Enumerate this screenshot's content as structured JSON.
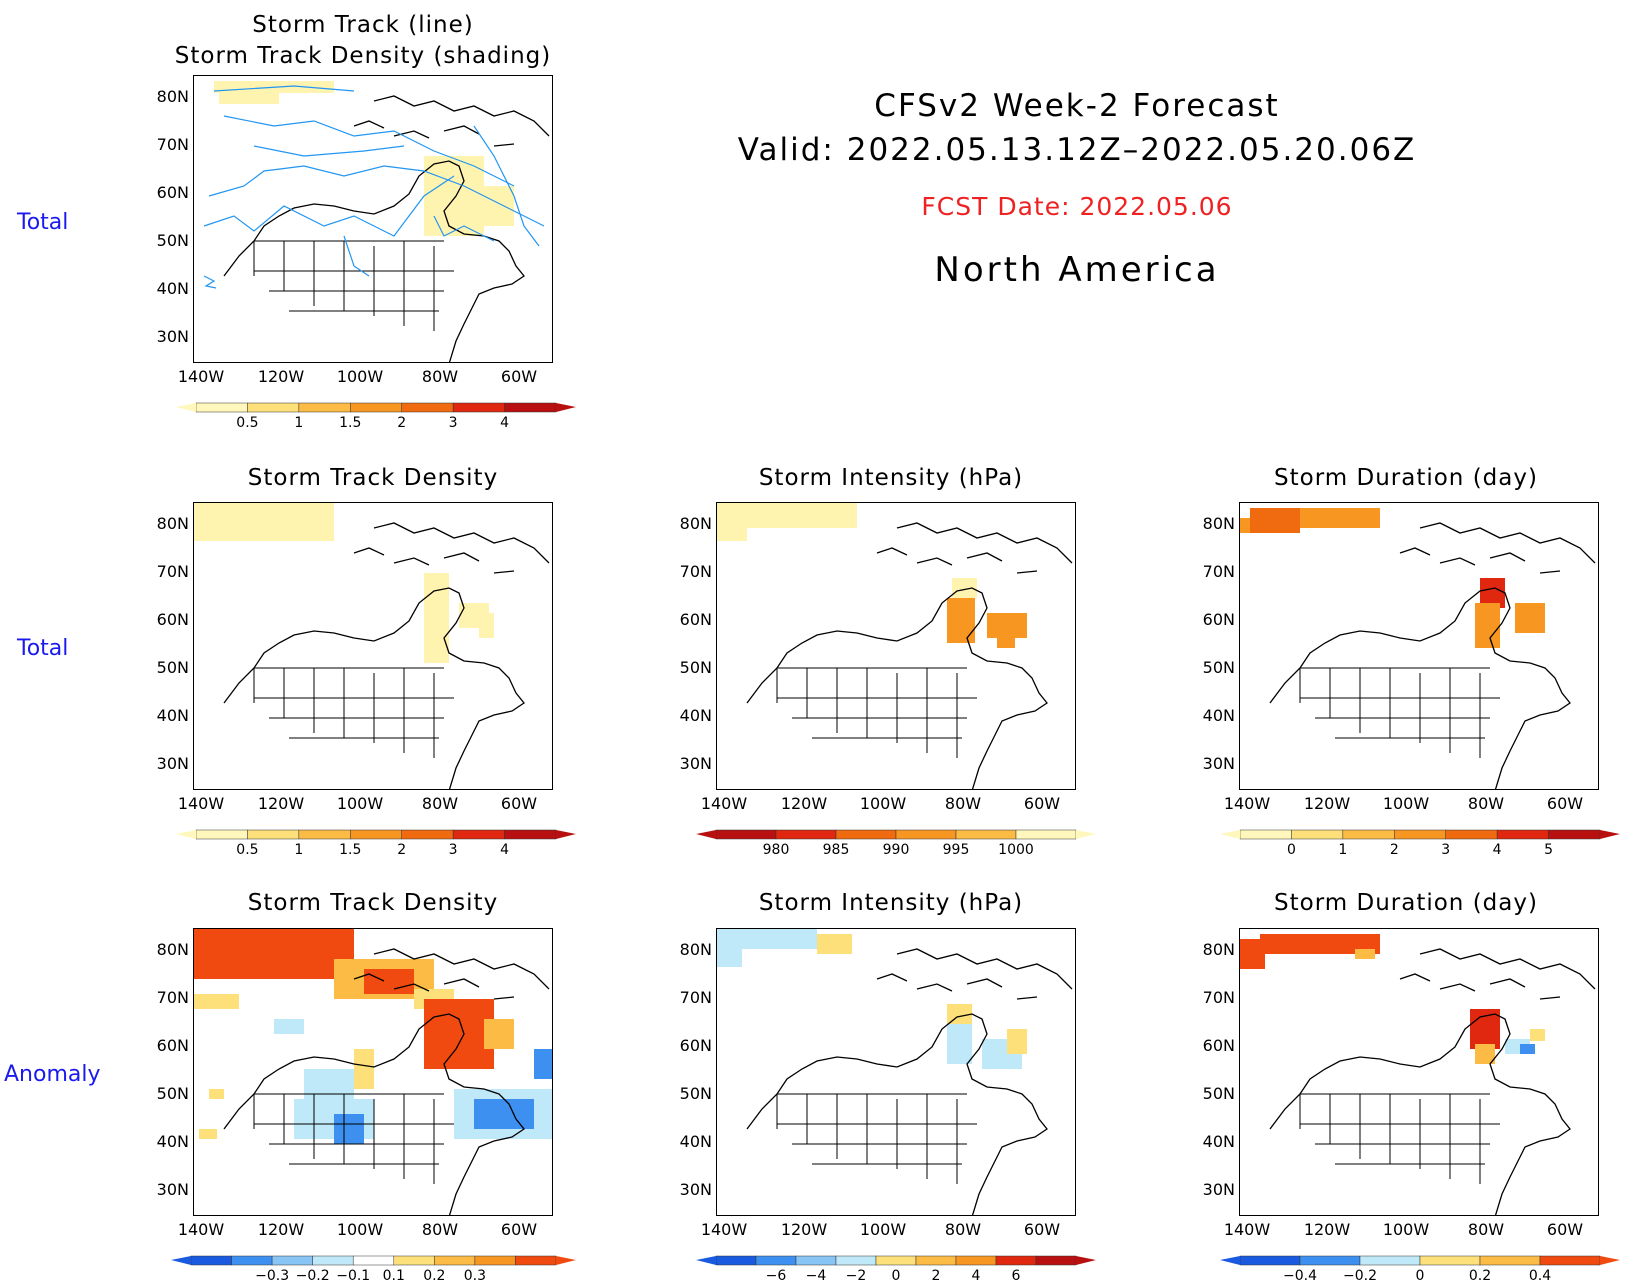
{
  "header": {
    "line1": "CFSv2  Week-2  Forecast",
    "line2": "Valid:  2022.05.13.12Z–2022.05.20.06Z",
    "fcst_date": "FCST Date: 2022.05.06",
    "region": "North  America"
  },
  "row_labels": {
    "row1": "Total",
    "row2": "Total",
    "row3": "Anomaly"
  },
  "panels": {
    "p1": {
      "title_line1": "Storm  Track  (line)",
      "title_line2": "Storm  Track  Density  (shading)"
    },
    "p2": {
      "title": "Storm  Track  Density"
    },
    "p3": {
      "title": "Storm  Intensity  (hPa)"
    },
    "p4": {
      "title": "Storm  Duration  (day)"
    },
    "p5": {
      "title": "Storm  Track  Density"
    },
    "p6": {
      "title": "Storm  Intensity  (hPa)"
    },
    "p7": {
      "title": "Storm  Duration  (day)"
    }
  },
  "axes": {
    "lat_labels": [
      "80N",
      "70N",
      "60N",
      "50N",
      "40N",
      "30N"
    ],
    "lon_labels": [
      "140W",
      "120W",
      "100W",
      "80W",
      "60W"
    ]
  },
  "colorbars": {
    "density_total": {
      "labels": [
        "0.5",
        "1",
        "1.5",
        "2",
        "3",
        "4"
      ],
      "colors": [
        "#fff7bb",
        "#fde07a",
        "#fbbb44",
        "#f89622",
        "#f06a10",
        "#e02810",
        "#b81010"
      ]
    },
    "intensity_total": {
      "labels": [
        "980",
        "985",
        "990",
        "995",
        "1000"
      ],
      "colors": [
        "#b81010",
        "#e02810",
        "#f06a10",
        "#f89622",
        "#fbbb44",
        "#fff7bb"
      ]
    },
    "duration_total": {
      "labels": [
        "0",
        "1",
        "2",
        "3",
        "4",
        "5"
      ],
      "colors": [
        "#fff7bb",
        "#fde07a",
        "#fbbb44",
        "#f89622",
        "#f06a10",
        "#e02810",
        "#b81010"
      ]
    },
    "density_anom": {
      "labels": [
        "−0.3",
        "−0.2",
        "−0.1",
        "0.1",
        "0.2",
        "0.3"
      ],
      "colors": [
        "#1a5ae0",
        "#3d8ff0",
        "#88c4f4",
        "#bfe9f8",
        "#ffffff",
        "#fde07a",
        "#fbbb44",
        "#f89622",
        "#f04a10"
      ]
    },
    "intensity_anom": {
      "labels": [
        "−6",
        "−4",
        "−2",
        "0",
        "2",
        "4",
        "6"
      ],
      "colors": [
        "#1a5ae0",
        "#3d8ff0",
        "#88c4f4",
        "#bfe9f8",
        "#fde07a",
        "#fbbb44",
        "#f89622",
        "#e02810",
        "#b81010"
      ]
    },
    "duration_anom": {
      "labels": [
        "−0.4",
        "−0.2",
        "0",
        "0.2",
        "0.4"
      ],
      "colors": [
        "#1a5ae0",
        "#3d8ff0",
        "#bfe9f8",
        "#fde07a",
        "#fbbb44",
        "#f04a10"
      ]
    }
  },
  "shading": {
    "p1": [
      [
        "#fff3b0",
        20,
        5,
        120,
        12
      ],
      [
        "#fff3b0",
        25,
        14,
        60,
        14
      ],
      [
        "#fff3b0",
        230,
        80,
        60,
        80
      ],
      [
        "#fff3b0",
        280,
        110,
        40,
        40
      ]
    ],
    "p2": [
      [
        "#fff3b0",
        0,
        0,
        140,
        38
      ],
      [
        "#fff3b0",
        230,
        70,
        25,
        90
      ],
      [
        "#fff3b0",
        265,
        100,
        30,
        25
      ],
      [
        "#fff3b0",
        285,
        110,
        15,
        25
      ]
    ],
    "p3": [
      [
        "#fff3b0",
        0,
        0,
        140,
        25
      ],
      [
        "#fff3b0",
        0,
        18,
        30,
        20
      ],
      [
        "#fff3b0",
        235,
        75,
        25,
        20
      ],
      [
        "#f89622",
        230,
        95,
        28,
        45
      ],
      [
        "#f89622",
        270,
        110,
        40,
        25
      ],
      [
        "#f89622",
        280,
        130,
        18,
        15
      ]
    ],
    "p4": [
      [
        "#f89622",
        0,
        15,
        20,
        15
      ],
      [
        "#f06a10",
        10,
        5,
        50,
        25
      ],
      [
        "#f89622",
        60,
        5,
        80,
        20
      ],
      [
        "#e02810",
        240,
        75,
        25,
        30
      ],
      [
        "#f89622",
        235,
        100,
        25,
        45
      ],
      [
        "#f89622",
        275,
        100,
        30,
        30
      ]
    ],
    "p5": [
      [
        "#f04a10",
        0,
        0,
        160,
        50
      ],
      [
        "#fbbb44",
        140,
        30,
        100,
        40
      ],
      [
        "#f04a10",
        170,
        40,
        50,
        25
      ],
      [
        "#fde07a",
        220,
        60,
        40,
        20
      ],
      [
        "#f04a10",
        230,
        70,
        70,
        70
      ],
      [
        "#fbbb44",
        290,
        90,
        30,
        30
      ],
      [
        "#fde07a",
        0,
        65,
        45,
        15
      ],
      [
        "#bfe9f8",
        80,
        90,
        30,
        15
      ],
      [
        "#bfe9f8",
        110,
        140,
        50,
        40
      ],
      [
        "#bfe9f8",
        100,
        170,
        80,
        40
      ],
      [
        "#3d8ff0",
        140,
        185,
        30,
        30
      ],
      [
        "#fde07a",
        160,
        120,
        20,
        40
      ],
      [
        "#bfe9f8",
        260,
        160,
        100,
        50
      ],
      [
        "#3d8ff0",
        280,
        170,
        60,
        30
      ],
      [
        "#3d8ff0",
        340,
        120,
        20,
        30
      ],
      [
        "#fde07a",
        15,
        160,
        15,
        10
      ],
      [
        "#fde07a",
        5,
        200,
        18,
        10
      ]
    ],
    "p6": [
      [
        "#bfe9f8",
        0,
        0,
        100,
        20
      ],
      [
        "#bfe9f8",
        0,
        18,
        25,
        20
      ],
      [
        "#fde07a",
        100,
        5,
        35,
        20
      ],
      [
        "#fde07a",
        230,
        75,
        25,
        20
      ],
      [
        "#bfe9f8",
        230,
        95,
        25,
        40
      ],
      [
        "#bfe9f8",
        265,
        110,
        40,
        30
      ],
      [
        "#fde07a",
        290,
        100,
        20,
        25
      ]
    ],
    "p7": [
      [
        "#f04a10",
        0,
        10,
        25,
        30
      ],
      [
        "#f04a10",
        20,
        5,
        120,
        20
      ],
      [
        "#fbbb44",
        115,
        20,
        20,
        10
      ],
      [
        "#e02810",
        230,
        80,
        30,
        40
      ],
      [
        "#fbbb44",
        235,
        115,
        20,
        20
      ],
      [
        "#bfe9f8",
        265,
        110,
        25,
        15
      ],
      [
        "#3d8ff0",
        280,
        115,
        15,
        10
      ],
      [
        "#fde07a",
        290,
        100,
        15,
        12
      ]
    ]
  }
}
